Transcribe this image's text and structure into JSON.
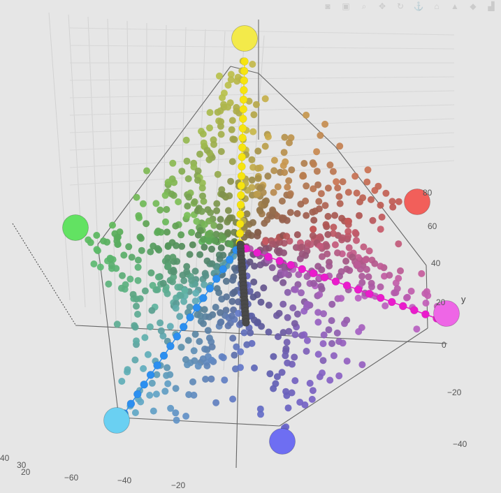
{
  "chart_data": {
    "type": "scatter3d",
    "title": "",
    "toolbar": [
      {
        "name": "camera-icon",
        "glyph": "◙"
      },
      {
        "name": "save-icon",
        "glyph": "▣"
      },
      {
        "name": "zoom-icon",
        "glyph": "⌕"
      },
      {
        "name": "pan-icon",
        "glyph": "✥"
      },
      {
        "name": "orbit-icon",
        "glyph": "↻"
      },
      {
        "name": "turntable-icon",
        "glyph": "⚓"
      },
      {
        "name": "home-icon",
        "glyph": "⌂"
      },
      {
        "name": "reset-camera-icon",
        "glyph": "▲"
      },
      {
        "name": "hover-icon",
        "glyph": "◆"
      },
      {
        "name": "plotly-logo-icon",
        "glyph": "▟"
      }
    ],
    "axes": {
      "y": {
        "label": "y",
        "ticks": [
          "80",
          "60",
          "40",
          "20",
          "0",
          "−20",
          "−40"
        ]
      },
      "x": {
        "ticks": [
          "−60",
          "−40",
          "−20"
        ]
      },
      "z": {
        "ticks": [
          "30",
          "20",
          "40"
        ]
      }
    },
    "anchors": [
      {
        "name": "yellow",
        "color": "#f3ea4a"
      },
      {
        "name": "red",
        "color": "#f25f5a"
      },
      {
        "name": "magenta",
        "color": "#ee66e6"
      },
      {
        "name": "violet",
        "color": "#6e6ef2"
      },
      {
        "name": "cyan",
        "color": "#6ad0f2"
      },
      {
        "name": "green",
        "color": "#62e262"
      }
    ],
    "series": [
      {
        "name": "yellow-track",
        "color": "#f6e410",
        "count": 20
      },
      {
        "name": "magenta-track",
        "color": "#ea1ccc",
        "count": 18
      },
      {
        "name": "blue-track",
        "color": "#2c8ff0",
        "count": 18
      },
      {
        "name": "gray-axis",
        "color": "#4a4a4a",
        "count": 22
      },
      {
        "name": "color-cloud",
        "count": 900
      }
    ]
  }
}
